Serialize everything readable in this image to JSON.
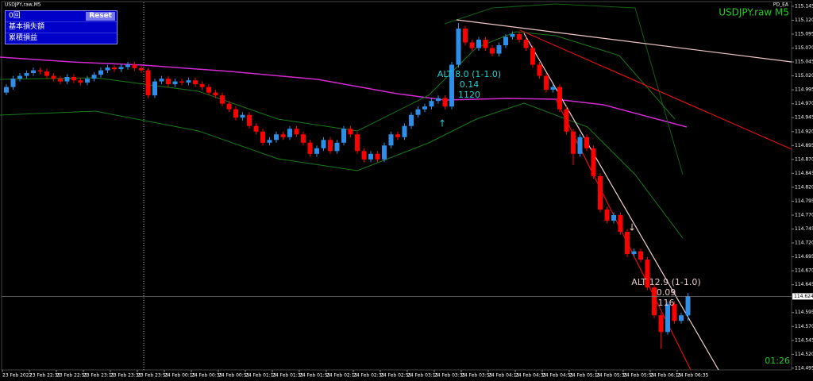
{
  "panel": {
    "rows": [
      "0回",
      "基本損失額",
      "累積損益"
    ],
    "button": "Reset"
  },
  "chart_data": {
    "type": "candlestick",
    "window_title": "USDJPY,raw,M5",
    "title": "USDJPY.raw M5",
    "ea_name": "PD_EA",
    "timer": "01:26",
    "up_color": "#2f8fe8",
    "down_color": "#ff0000",
    "open": [
      114.99,
      115.0,
      115.015,
      115.02,
      115.025,
      115.03,
      115.028,
      115.02,
      115.015,
      115.01,
      115.018,
      115.012,
      115.008,
      115.015,
      115.022,
      115.03,
      115.035,
      115.032,
      115.036,
      115.04,
      115.034,
      115.03,
      114.985,
      115.01,
      115.015,
      115.005,
      115.01,
      115.008,
      115.012,
      115.005,
      115.0,
      114.99,
      114.985,
      114.97,
      114.96,
      114.945,
      114.95,
      114.93,
      114.92,
      114.9,
      114.905,
      114.915,
      114.91,
      114.925,
      114.915,
      114.9,
      114.88,
      114.89,
      114.905,
      114.885,
      114.9,
      114.925,
      114.915,
      114.885,
      114.87,
      114.88,
      114.87,
      114.895,
      114.915,
      114.91,
      114.93,
      114.95,
      114.96,
      114.965,
      114.975,
      114.98,
      114.965,
      115.04,
      115.105,
      115.08,
      115.07,
      115.085,
      115.07,
      115.06,
      115.075,
      115.09,
      115.095,
      115.085,
      115.07,
      115.04,
      115.02,
      114.995,
      115.0,
      114.96,
      114.92,
      114.88,
      114.91,
      114.89,
      114.84,
      114.78,
      114.76,
      114.77,
      114.74,
      114.7,
      114.705,
      114.69,
      114.64,
      114.59,
      114.56,
      114.61,
      114.58,
      114.59
    ],
    "high": [
      115.005,
      115.02,
      115.025,
      115.03,
      115.035,
      115.035,
      115.033,
      115.025,
      115.02,
      115.023,
      115.023,
      115.017,
      115.02,
      115.027,
      115.035,
      115.04,
      115.04,
      115.041,
      115.045,
      115.045,
      115.039,
      115.035,
      115.015,
      115.02,
      115.02,
      115.015,
      115.015,
      115.017,
      115.017,
      115.01,
      115.005,
      114.995,
      114.99,
      114.975,
      114.965,
      114.955,
      114.955,
      114.935,
      114.925,
      114.91,
      114.92,
      114.92,
      114.93,
      114.93,
      114.92,
      114.905,
      114.895,
      114.91,
      114.91,
      114.905,
      114.93,
      114.93,
      114.92,
      114.89,
      114.885,
      114.885,
      114.9,
      114.92,
      114.92,
      114.935,
      114.955,
      114.965,
      114.97,
      114.98,
      114.985,
      114.985,
      115.045,
      115.115,
      115.11,
      115.085,
      115.09,
      115.09,
      115.075,
      115.08,
      115.095,
      115.1,
      115.1,
      115.09,
      115.075,
      115.045,
      115.025,
      115.005,
      115.005,
      114.965,
      114.925,
      114.915,
      114.915,
      114.895,
      114.845,
      114.785,
      114.775,
      114.775,
      114.745,
      114.71,
      114.71,
      114.695,
      114.645,
      114.595,
      114.615,
      114.615,
      114.595,
      114.63
    ],
    "low": [
      114.985,
      114.995,
      115.01,
      115.015,
      115.02,
      115.023,
      115.015,
      115.01,
      115.005,
      115.005,
      115.007,
      115.003,
      115.003,
      115.01,
      115.017,
      115.025,
      115.027,
      115.027,
      115.031,
      115.029,
      115.025,
      114.98,
      114.98,
      115.005,
      115.0,
      115.0,
      115.003,
      115.003,
      115.0,
      114.995,
      114.985,
      114.98,
      114.965,
      114.955,
      114.94,
      114.94,
      114.925,
      114.915,
      114.895,
      114.895,
      114.9,
      114.905,
      114.905,
      114.91,
      114.895,
      114.875,
      114.875,
      114.885,
      114.88,
      114.88,
      114.895,
      114.91,
      114.88,
      114.865,
      114.865,
      114.865,
      114.865,
      114.89,
      114.905,
      114.905,
      114.925,
      114.945,
      114.955,
      114.96,
      114.97,
      114.96,
      114.96,
      115.035,
      115.075,
      115.065,
      115.065,
      115.065,
      115.055,
      115.055,
      115.07,
      115.085,
      115.08,
      115.065,
      115.035,
      115.015,
      114.99,
      114.99,
      114.955,
      114.915,
      114.86,
      114.875,
      114.885,
      114.835,
      114.775,
      114.755,
      114.755,
      114.735,
      114.695,
      114.695,
      114.685,
      114.635,
      114.585,
      114.53,
      114.555,
      114.575,
      114.575,
      114.58
    ],
    "close": [
      115.0,
      115.015,
      115.02,
      115.025,
      115.03,
      115.028,
      115.02,
      115.015,
      115.01,
      115.018,
      115.012,
      115.008,
      115.015,
      115.022,
      115.03,
      115.035,
      115.032,
      115.036,
      115.04,
      115.034,
      115.03,
      114.985,
      115.01,
      115.015,
      115.005,
      115.01,
      115.008,
      115.012,
      115.005,
      115.0,
      114.99,
      114.985,
      114.97,
      114.96,
      114.945,
      114.95,
      114.93,
      114.92,
      114.9,
      114.905,
      114.915,
      114.91,
      114.925,
      114.915,
      114.9,
      114.88,
      114.89,
      114.905,
      114.885,
      114.9,
      114.925,
      114.915,
      114.885,
      114.87,
      114.88,
      114.87,
      114.895,
      114.915,
      114.91,
      114.93,
      114.95,
      114.96,
      114.965,
      114.975,
      114.98,
      114.965,
      115.04,
      115.105,
      115.08,
      115.07,
      115.085,
      115.07,
      115.06,
      115.075,
      115.09,
      115.095,
      115.085,
      115.07,
      115.04,
      115.02,
      114.995,
      115.0,
      114.96,
      114.92,
      114.88,
      114.91,
      114.89,
      114.84,
      114.78,
      114.76,
      114.77,
      114.74,
      114.7,
      114.705,
      114.69,
      114.64,
      114.59,
      114.56,
      114.61,
      114.58,
      114.59,
      114.624
    ],
    "time_labels": [
      "23 Feb 2022",
      "23 Feb 22:35",
      "23 Feb 22:55",
      "23 Feb 23:15",
      "23 Feb 23:35",
      "23 Feb 23:55",
      "24 Feb 00:15",
      "24 Feb 00:35",
      "24 Feb 00:55",
      "24 Feb 01:15",
      "24 Feb 01:35",
      "24 Feb 01:55",
      "24 Feb 02:15",
      "24 Feb 02:35",
      "24 Feb 02:55",
      "24 Feb 03:15",
      "24 Feb 03:35",
      "24 Feb 03:55",
      "24 Feb 04:15",
      "24 Feb 04:35",
      "24 Feb 04:55",
      "24 Feb 05:15",
      "24 Feb 05:35",
      "24 Feb 05:55",
      "24 Feb 06:15",
      "24 Feb 06:35"
    ],
    "ylim": [
      114.492,
      115.152
    ],
    "yticks": [
      115.145,
      {
        "value": 115.12,
        "label": "115.120"
      },
      115.095,
      {
        "value": 115.07,
        "label": "115.070"
      },
      115.045,
      {
        "value": 115.02,
        "label": "115.020"
      },
      114.995,
      {
        "value": 114.97,
        "label": "114.970"
      },
      114.945,
      {
        "value": 114.92,
        "label": "114.920"
      },
      114.895,
      {
        "value": 114.87,
        "label": "114.870"
      },
      114.845,
      {
        "value": 114.82,
        "label": "114.820"
      },
      114.795,
      {
        "value": 114.77,
        "label": "114.770"
      },
      114.745,
      {
        "value": 114.72,
        "label": "114.720"
      },
      114.695,
      {
        "value": 114.67,
        "label": "114.670"
      },
      114.645,
      114.595,
      {
        "value": 114.57,
        "label": "114.570"
      },
      114.545,
      {
        "value": 114.52,
        "label": "114.520"
      },
      114.495
    ],
    "current_price": 114.624,
    "annotations": [
      {
        "lines": [
          "ALT 8.0 (1-1.0)",
          "0.14",
          "1120"
        ],
        "color": "#19d3d3"
      },
      {
        "lines": [
          "ALT 12.9 (1-1.0)",
          "0.09",
          "116"
        ],
        "color": "#e8c8c8"
      }
    ]
  }
}
